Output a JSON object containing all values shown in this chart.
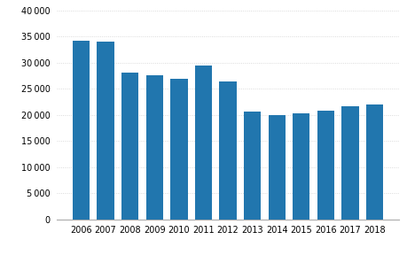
{
  "years": [
    "2006",
    "2007",
    "2008",
    "2009",
    "2010",
    "2011",
    "2012",
    "2013",
    "2014",
    "2015",
    "2016",
    "2017",
    "2018"
  ],
  "values": [
    34200,
    34000,
    28100,
    27600,
    26800,
    29500,
    26300,
    20600,
    20000,
    20300,
    20800,
    21700,
    21900
  ],
  "bar_color": "#2176ae",
  "ylim": [
    0,
    40000
  ],
  "yticks": [
    0,
    5000,
    10000,
    15000,
    20000,
    25000,
    30000,
    35000,
    40000
  ],
  "background_color": "#ffffff",
  "grid_color": "#d0d0d0",
  "grid_linestyle": "dotted"
}
